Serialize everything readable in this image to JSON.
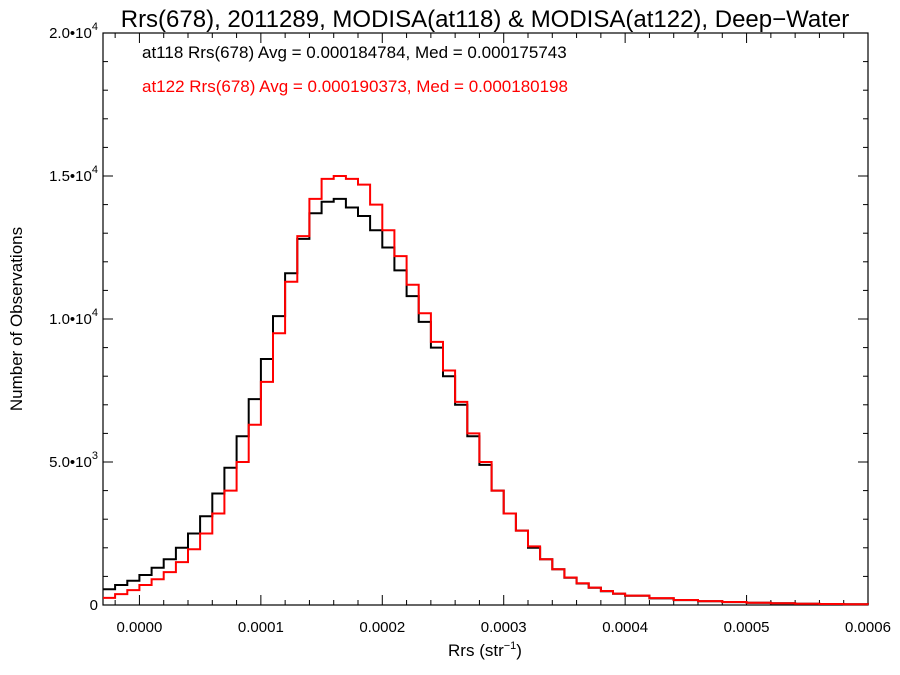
{
  "chart_data": {
    "type": "line",
    "title": "Rrs(678), 2011289, MODISA(at118) & MODISA(at122), Deep−Water",
    "xlabel": "Rrs (str",
    "xlabel_sup": "−1",
    "xlabel_end": ")",
    "ylabel": "Number of Observations",
    "xlim": [
      -3e-05,
      0.0006
    ],
    "ylim": [
      0,
      20000
    ],
    "x_ticks": [
      0.0,
      0.0001,
      0.0002,
      0.0003,
      0.0004,
      0.0005,
      0.0006
    ],
    "x_tick_labels": [
      "0.0000",
      "0.0001",
      "0.0002",
      "0.0003",
      "0.0004",
      "0.0005",
      "0.0006"
    ],
    "y_ticks": [
      0,
      5000,
      10000,
      15000,
      20000
    ],
    "y_tick_labels": [
      {
        "base": "0",
        "exp": ""
      },
      {
        "base": "5.0•10",
        "exp": "3"
      },
      {
        "base": "1.0•10",
        "exp": "4"
      },
      {
        "base": "1.5•10",
        "exp": "4"
      },
      {
        "base": "2.0•10",
        "exp": "4"
      }
    ],
    "annotations": [
      {
        "text": "at118 Rrs(678) Avg = 0.000184784, Med = 0.000175743",
        "color": "#000000"
      },
      {
        "text": "at122 Rrs(678) Avg = 0.000190373, Med = 0.000180198",
        "color": "#ff0000"
      }
    ],
    "series": [
      {
        "name": "at118",
        "color": "#000000",
        "x": [
          -3e-05,
          -2e-05,
          -1e-05,
          0.0,
          1e-05,
          2e-05,
          3e-05,
          4e-05,
          5e-05,
          6e-05,
          7e-05,
          8e-05,
          9e-05,
          0.0001,
          0.00011,
          0.00012,
          0.00013,
          0.00014,
          0.00015,
          0.00016,
          0.00017,
          0.00018,
          0.00019,
          0.0002,
          0.00021,
          0.00022,
          0.00023,
          0.00024,
          0.00025,
          0.00026,
          0.00027,
          0.00028,
          0.00029,
          0.0003,
          0.00031,
          0.00032,
          0.00033,
          0.00034,
          0.00035,
          0.00036,
          0.00037,
          0.00038,
          0.00039,
          0.0004,
          0.00042,
          0.00044,
          0.00046,
          0.00048,
          0.0005,
          0.00052,
          0.00054,
          0.00056,
          0.00058,
          0.0006
        ],
        "y": [
          550,
          700,
          850,
          1050,
          1300,
          1600,
          2000,
          2500,
          3100,
          3900,
          4800,
          5900,
          7200,
          8600,
          10100,
          11600,
          12800,
          13700,
          14100,
          14200,
          13900,
          13600,
          13100,
          12500,
          11700,
          10800,
          9900,
          9000,
          8000,
          7000,
          5900,
          4900,
          4000,
          3200,
          2600,
          2000,
          1600,
          1250,
          950,
          750,
          600,
          480,
          390,
          320,
          230,
          170,
          130,
          100,
          80,
          60,
          45,
          35,
          25,
          20
        ]
      },
      {
        "name": "at122",
        "color": "#ff0000",
        "x": [
          -3e-05,
          -2e-05,
          -1e-05,
          0.0,
          1e-05,
          2e-05,
          3e-05,
          4e-05,
          5e-05,
          6e-05,
          7e-05,
          8e-05,
          9e-05,
          0.0001,
          0.00011,
          0.00012,
          0.00013,
          0.00014,
          0.00015,
          0.00016,
          0.00017,
          0.00018,
          0.00019,
          0.0002,
          0.00021,
          0.00022,
          0.00023,
          0.00024,
          0.00025,
          0.00026,
          0.00027,
          0.00028,
          0.00029,
          0.0003,
          0.00031,
          0.00032,
          0.00033,
          0.00034,
          0.00035,
          0.00036,
          0.00037,
          0.00038,
          0.00039,
          0.0004,
          0.00042,
          0.00044,
          0.00046,
          0.00048,
          0.0005,
          0.00052,
          0.00054,
          0.00056,
          0.00058,
          0.0006
        ],
        "y": [
          250,
          380,
          520,
          700,
          900,
          1150,
          1500,
          1950,
          2500,
          3200,
          4000,
          5000,
          6300,
          7800,
          9500,
          11300,
          12900,
          14200,
          14900,
          15000,
          14900,
          14700,
          14000,
          13100,
          12200,
          11200,
          10200,
          9200,
          8200,
          7100,
          6000,
          5000,
          4000,
          3200,
          2600,
          2050,
          1600,
          1250,
          960,
          760,
          610,
          490,
          400,
          330,
          240,
          175,
          135,
          105,
          80,
          60,
          45,
          35,
          25,
          20
        ]
      }
    ]
  }
}
